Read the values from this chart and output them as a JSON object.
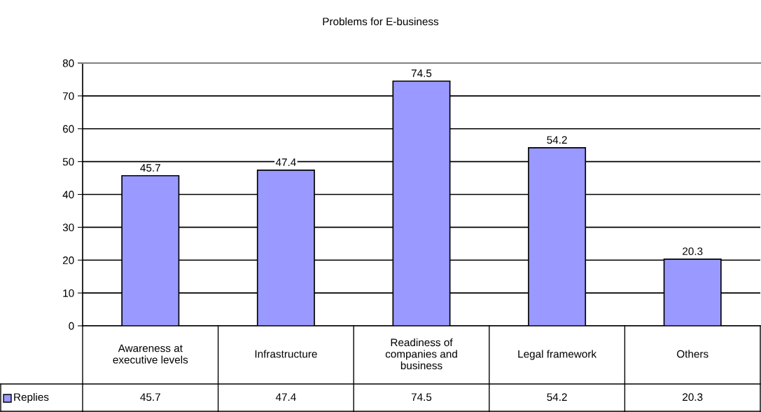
{
  "chart_data": {
    "type": "bar",
    "title": "Problems for E-business",
    "categories": [
      "Awareness at\nexecutive levels",
      "Infrastructure",
      "Readiness of\ncompanies and\nbusiness",
      "Legal framework",
      "Others"
    ],
    "series": [
      {
        "name": "Replies",
        "color": "#9999ff",
        "values": [
          45.7,
          47.4,
          74.5,
          54.2,
          20.3
        ]
      }
    ],
    "annotations": [
      "45.7",
      "47.4",
      "74.5",
      "54.2",
      "20.3"
    ],
    "ylim": [
      0,
      80
    ],
    "yticks": [
      0,
      10,
      20,
      30,
      40,
      50,
      60,
      70,
      80
    ],
    "grid": "y",
    "data_labels": true,
    "legend": "bottom left"
  }
}
